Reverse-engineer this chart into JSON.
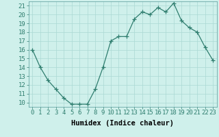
{
  "x": [
    0,
    1,
    2,
    3,
    4,
    5,
    6,
    7,
    8,
    9,
    10,
    11,
    12,
    13,
    14,
    15,
    16,
    17,
    18,
    19,
    20,
    21,
    22,
    23
  ],
  "y": [
    16,
    14,
    12.5,
    11.5,
    10.5,
    9.8,
    9.8,
    9.8,
    11.5,
    14,
    17,
    17.5,
    17.5,
    19.5,
    20.3,
    20,
    20.8,
    20.3,
    21.3,
    19.3,
    18.5,
    18,
    16.3,
    14.8
  ],
  "line_color": "#2e7d6e",
  "marker": "+",
  "marker_size": 4,
  "bg_color": "#cff0eb",
  "grid_color": "#aad9d3",
  "xlabel": "Humidex (Indice chaleur)",
  "xlim": [
    -0.5,
    23.5
  ],
  "ylim": [
    9.5,
    21.5
  ],
  "yticks": [
    10,
    11,
    12,
    13,
    14,
    15,
    16,
    17,
    18,
    19,
    20,
    21
  ],
  "xticks": [
    0,
    1,
    2,
    3,
    4,
    5,
    6,
    7,
    8,
    9,
    10,
    11,
    12,
    13,
    14,
    15,
    16,
    17,
    18,
    19,
    20,
    21,
    22,
    23
  ],
  "xlabel_fontsize": 7.5,
  "tick_fontsize": 6.5,
  "line_width": 0.9,
  "marker_edge_width": 0.9
}
